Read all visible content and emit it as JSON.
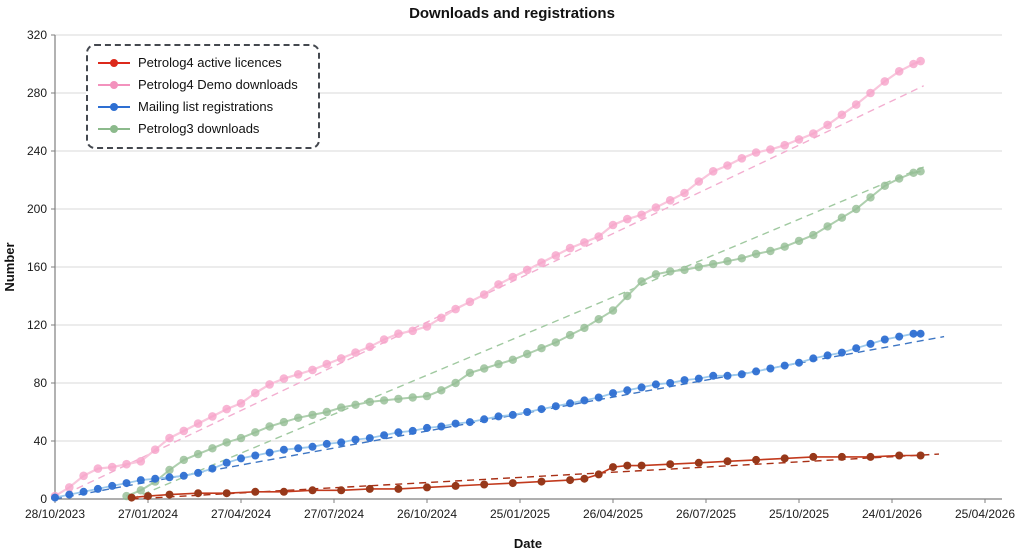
{
  "chart_data": {
    "type": "scatter",
    "title": "Downloads and registrations",
    "xlabel": "Date",
    "ylabel": "Number",
    "ylim": [
      0,
      320
    ],
    "y_ticks": [
      0,
      40,
      80,
      120,
      160,
      200,
      240,
      280,
      320
    ],
    "x_ticks": [
      {
        "label": "28/10/2023",
        "day": 0
      },
      {
        "label": "27/01/2024",
        "day": 91
      },
      {
        "label": "27/04/2024",
        "day": 182
      },
      {
        "label": "27/07/2024",
        "day": 273
      },
      {
        "label": "26/10/2024",
        "day": 364
      },
      {
        "label": "25/01/2025",
        "day": 455
      },
      {
        "label": "26/04/2025",
        "day": 546
      },
      {
        "label": "26/07/2025",
        "day": 637
      },
      {
        "label": "25/10/2025",
        "day": 728
      },
      {
        "label": "24/01/2026",
        "day": 819
      },
      {
        "label": "25/04/2026",
        "day": 910
      }
    ],
    "grid": "horizontal",
    "grid_color": "#d9d9d9",
    "axis_color": "#7f7f7f",
    "legend_position": "top-left",
    "draw_order": [
      1,
      3,
      2,
      0
    ],
    "series": [
      {
        "id": "petrolog4-active-licences",
        "name": "Petrolog4 active licences",
        "legend_color": "#dc291b",
        "marker_color": "#97381a",
        "line_color": "#c23a1d",
        "trend_color": "#a93016",
        "marker_r": 4,
        "marker_opacity": 1,
        "line_width": 1.6,
        "trendline": [
          [
            75,
            0
          ],
          [
            865,
            31
          ]
        ],
        "points": [
          [
            75,
            1
          ],
          [
            91,
            2
          ],
          [
            112,
            3
          ],
          [
            140,
            4
          ],
          [
            168,
            4
          ],
          [
            196,
            5
          ],
          [
            224,
            5
          ],
          [
            252,
            6
          ],
          [
            280,
            6
          ],
          [
            308,
            7
          ],
          [
            336,
            7
          ],
          [
            364,
            8
          ],
          [
            392,
            9
          ],
          [
            420,
            10
          ],
          [
            448,
            11
          ],
          [
            476,
            12
          ],
          [
            504,
            13
          ],
          [
            518,
            14
          ],
          [
            532,
            17
          ],
          [
            546,
            22
          ],
          [
            560,
            23
          ],
          [
            574,
            23
          ],
          [
            602,
            24
          ],
          [
            630,
            25
          ],
          [
            658,
            26
          ],
          [
            686,
            27
          ],
          [
            714,
            28
          ],
          [
            742,
            29
          ],
          [
            770,
            29
          ],
          [
            798,
            29
          ],
          [
            826,
            30
          ],
          [
            847,
            30
          ]
        ]
      },
      {
        "id": "petrolog4-demo-downloads",
        "name": "Petrolog4 Demo downloads",
        "legend_color": "#f392bd",
        "marker_color": "#f6a3c9",
        "line_color": "#f9c6dc",
        "trend_color": "#f3aed0",
        "marker_r": 4.3,
        "marker_opacity": 0.8,
        "line_width": 2.2,
        "trendline": [
          [
            0,
            0
          ],
          [
            850,
            285
          ]
        ],
        "points": [
          [
            0,
            2
          ],
          [
            14,
            8
          ],
          [
            28,
            16
          ],
          [
            42,
            21
          ],
          [
            56,
            22
          ],
          [
            70,
            24
          ],
          [
            84,
            26
          ],
          [
            98,
            34
          ],
          [
            112,
            42
          ],
          [
            126,
            47
          ],
          [
            140,
            52
          ],
          [
            154,
            57
          ],
          [
            168,
            62
          ],
          [
            182,
            66
          ],
          [
            196,
            73
          ],
          [
            210,
            79
          ],
          [
            224,
            83
          ],
          [
            238,
            86
          ],
          [
            252,
            89
          ],
          [
            266,
            93
          ],
          [
            280,
            97
          ],
          [
            294,
            101
          ],
          [
            308,
            105
          ],
          [
            322,
            110
          ],
          [
            336,
            114
          ],
          [
            350,
            116
          ],
          [
            364,
            119
          ],
          [
            378,
            125
          ],
          [
            392,
            131
          ],
          [
            406,
            136
          ],
          [
            420,
            141
          ],
          [
            434,
            148
          ],
          [
            448,
            153
          ],
          [
            462,
            158
          ],
          [
            476,
            163
          ],
          [
            490,
            168
          ],
          [
            504,
            173
          ],
          [
            518,
            177
          ],
          [
            532,
            181
          ],
          [
            546,
            189
          ],
          [
            560,
            193
          ],
          [
            574,
            196
          ],
          [
            588,
            201
          ],
          [
            602,
            206
          ],
          [
            616,
            211
          ],
          [
            630,
            219
          ],
          [
            644,
            226
          ],
          [
            658,
            230
          ],
          [
            672,
            235
          ],
          [
            686,
            239
          ],
          [
            700,
            241
          ],
          [
            714,
            244
          ],
          [
            728,
            248
          ],
          [
            742,
            252
          ],
          [
            756,
            258
          ],
          [
            770,
            265
          ],
          [
            784,
            272
          ],
          [
            798,
            280
          ],
          [
            812,
            288
          ],
          [
            826,
            295
          ],
          [
            840,
            300
          ],
          [
            847,
            302
          ]
        ]
      },
      {
        "id": "mailing-list-registrations",
        "name": "Mailing list registrations",
        "legend_color": "#2e6fd2",
        "marker_color": "#2e6fd2",
        "line_color": "#9cc9ec",
        "trend_color": "#3f77c4",
        "marker_r": 4,
        "marker_opacity": 0.95,
        "line_width": 1.8,
        "trendline": [
          [
            0,
            0
          ],
          [
            870,
            112
          ]
        ],
        "points": [
          [
            0,
            1
          ],
          [
            14,
            3
          ],
          [
            28,
            5
          ],
          [
            42,
            7
          ],
          [
            56,
            9
          ],
          [
            70,
            11
          ],
          [
            84,
            13
          ],
          [
            98,
            14
          ],
          [
            112,
            15
          ],
          [
            126,
            16
          ],
          [
            140,
            18
          ],
          [
            154,
            21
          ],
          [
            168,
            25
          ],
          [
            182,
            28
          ],
          [
            196,
            30
          ],
          [
            210,
            32
          ],
          [
            224,
            34
          ],
          [
            238,
            35
          ],
          [
            252,
            36
          ],
          [
            266,
            38
          ],
          [
            280,
            39
          ],
          [
            294,
            41
          ],
          [
            308,
            42
          ],
          [
            322,
            44
          ],
          [
            336,
            46
          ],
          [
            350,
            47
          ],
          [
            364,
            49
          ],
          [
            378,
            50
          ],
          [
            392,
            52
          ],
          [
            406,
            53
          ],
          [
            420,
            55
          ],
          [
            434,
            57
          ],
          [
            448,
            58
          ],
          [
            462,
            60
          ],
          [
            476,
            62
          ],
          [
            490,
            64
          ],
          [
            504,
            66
          ],
          [
            518,
            68
          ],
          [
            532,
            70
          ],
          [
            546,
            73
          ],
          [
            560,
            75
          ],
          [
            574,
            77
          ],
          [
            588,
            79
          ],
          [
            602,
            80
          ],
          [
            616,
            82
          ],
          [
            630,
            83
          ],
          [
            644,
            85
          ],
          [
            658,
            85
          ],
          [
            672,
            86
          ],
          [
            686,
            88
          ],
          [
            700,
            90
          ],
          [
            714,
            92
          ],
          [
            728,
            94
          ],
          [
            742,
            97
          ],
          [
            756,
            99
          ],
          [
            770,
            101
          ],
          [
            784,
            104
          ],
          [
            798,
            107
          ],
          [
            812,
            110
          ],
          [
            826,
            112
          ],
          [
            840,
            114
          ],
          [
            847,
            114
          ]
        ]
      },
      {
        "id": "petrolog3-downloads",
        "name": "Petrolog3 downloads",
        "legend_color": "#8cba8c",
        "marker_color": "#93bd93",
        "line_color": "#aecfae",
        "trend_color": "#a0c9a0",
        "marker_r": 4.2,
        "marker_opacity": 0.8,
        "line_width": 2,
        "trendline": [
          [
            75,
            0
          ],
          [
            850,
            229
          ]
        ],
        "points": [
          [
            70,
            2
          ],
          [
            84,
            6
          ],
          [
            98,
            12
          ],
          [
            112,
            20
          ],
          [
            126,
            27
          ],
          [
            140,
            31
          ],
          [
            154,
            35
          ],
          [
            168,
            39
          ],
          [
            182,
            42
          ],
          [
            196,
            46
          ],
          [
            210,
            50
          ],
          [
            224,
            53
          ],
          [
            238,
            56
          ],
          [
            252,
            58
          ],
          [
            266,
            60
          ],
          [
            280,
            63
          ],
          [
            294,
            65
          ],
          [
            308,
            67
          ],
          [
            322,
            68
          ],
          [
            336,
            69
          ],
          [
            350,
            70
          ],
          [
            364,
            71
          ],
          [
            378,
            75
          ],
          [
            392,
            80
          ],
          [
            406,
            87
          ],
          [
            420,
            90
          ],
          [
            434,
            93
          ],
          [
            448,
            96
          ],
          [
            462,
            100
          ],
          [
            476,
            104
          ],
          [
            490,
            108
          ],
          [
            504,
            113
          ],
          [
            518,
            118
          ],
          [
            532,
            124
          ],
          [
            546,
            130
          ],
          [
            560,
            140
          ],
          [
            574,
            150
          ],
          [
            588,
            155
          ],
          [
            602,
            157
          ],
          [
            616,
            158
          ],
          [
            630,
            160
          ],
          [
            644,
            162
          ],
          [
            658,
            164
          ],
          [
            672,
            166
          ],
          [
            686,
            169
          ],
          [
            700,
            171
          ],
          [
            714,
            174
          ],
          [
            728,
            178
          ],
          [
            742,
            182
          ],
          [
            756,
            188
          ],
          [
            770,
            194
          ],
          [
            784,
            200
          ],
          [
            798,
            208
          ],
          [
            812,
            216
          ],
          [
            826,
            221
          ],
          [
            840,
            225
          ],
          [
            847,
            226
          ]
        ]
      }
    ]
  }
}
